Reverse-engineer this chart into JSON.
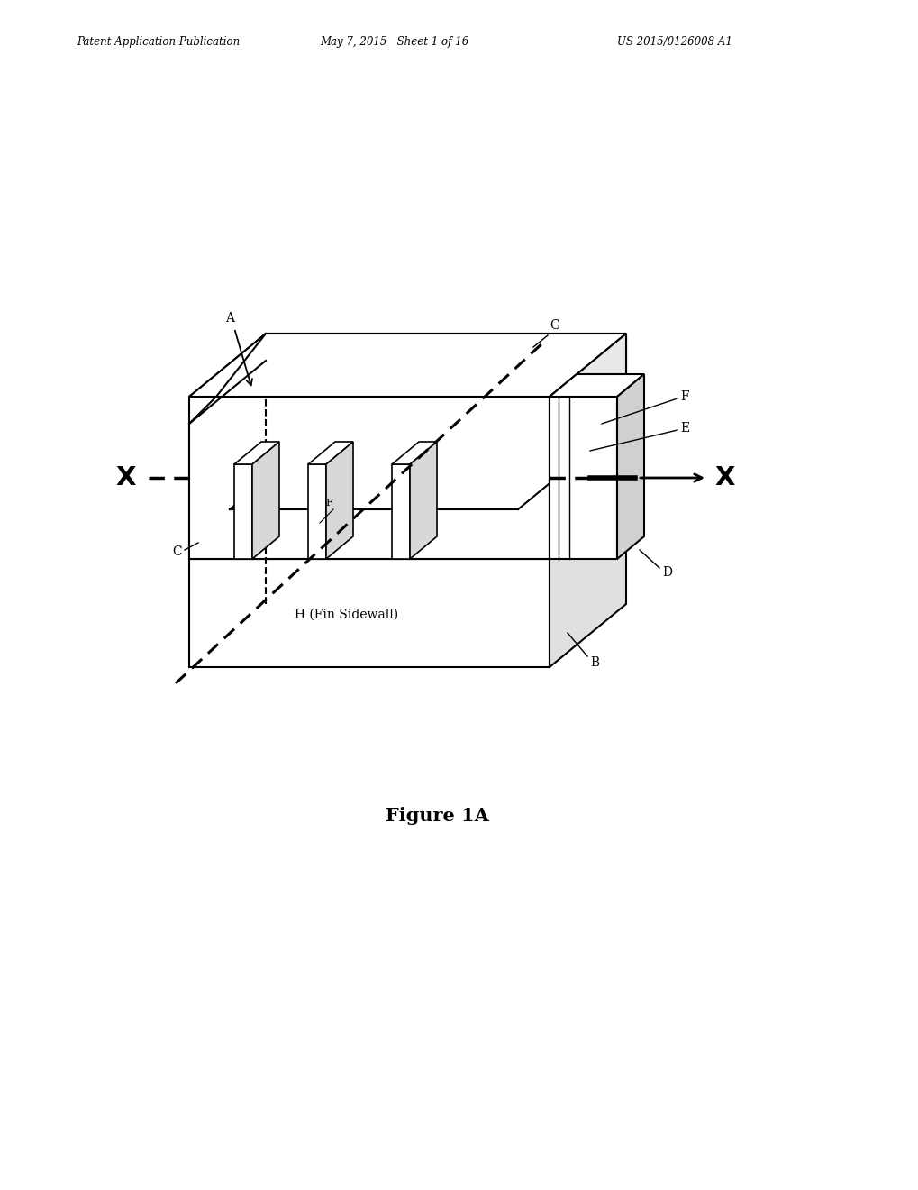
{
  "header_left": "Patent Application Publication",
  "header_mid": "May 7, 2015   Sheet 1 of 16",
  "header_right": "US 2015/0126008 A1",
  "figure_title": "Figure 1A",
  "bg_color": "#ffffff",
  "line_color": "#000000",
  "label_A": "A",
  "label_B": "B",
  "label_C": "C",
  "label_D": "D",
  "label_E": "E",
  "label_F": "F",
  "label_G": "G",
  "label_H": "H (Fin Sidewall)",
  "label_X_left": "X",
  "label_X_right": "X",
  "label_fin": "F"
}
